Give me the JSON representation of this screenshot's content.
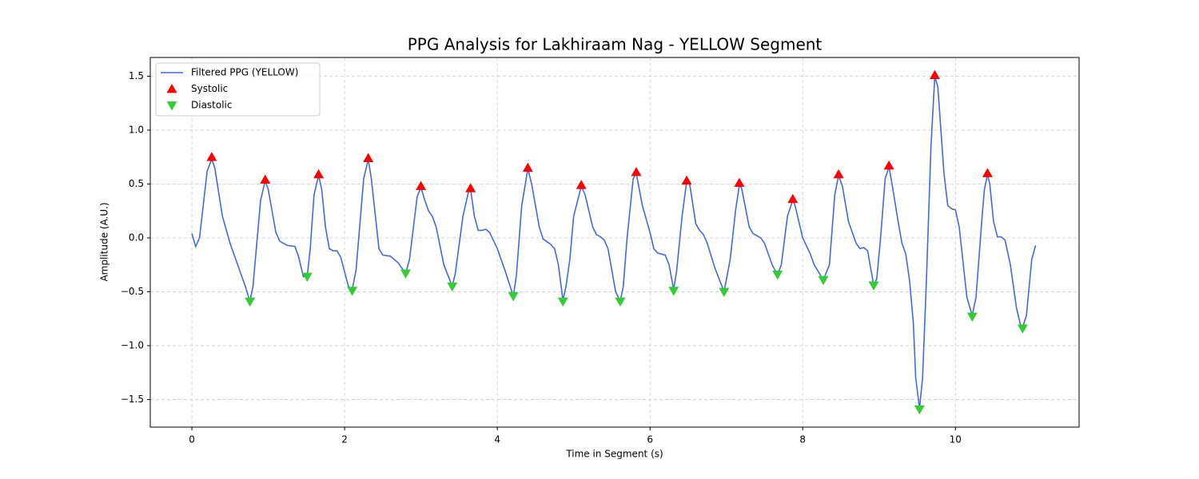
{
  "chart_data": {
    "type": "line",
    "title": "PPG Analysis for Lakhiraam Nag - YELLOW Segment",
    "xlabel": "Time in Segment (s)",
    "ylabel": "Amplitude (A.U.)",
    "xlim": [
      -0.545,
      11.62
    ],
    "ylim": [
      -1.756,
      1.674
    ],
    "xticks": [
      0,
      2,
      4,
      6,
      8,
      10
    ],
    "yticks": [
      {
        "value": -1.5,
        "label": "−1.5"
      },
      {
        "value": -1.0,
        "label": "−1.0"
      },
      {
        "value": -0.5,
        "label": "−0.5"
      },
      {
        "value": 0,
        "label": "0.0"
      },
      {
        "value": 0.5,
        "label": "0.5"
      },
      {
        "value": 1.0,
        "label": "1.0"
      },
      {
        "value": 1.5,
        "label": "1.5"
      }
    ],
    "grid": true,
    "legend": "upper left",
    "series": [
      {
        "name": "Filtered PPG (YELLOW)",
        "color": "#4169e1",
        "marker": "none",
        "x": [
          0,
          0.05,
          0.1,
          0.2,
          0.26,
          0.3,
          0.4,
          0.5,
          0.6,
          0.7,
          0.76,
          0.8,
          0.9,
          0.96,
          1.0,
          1.1,
          1.15,
          1.25,
          1.35,
          1.4,
          1.46,
          1.51,
          1.55,
          1.6,
          1.66,
          1.7,
          1.75,
          1.8,
          1.85,
          1.9,
          1.95,
          2.05,
          2.1,
          2.15,
          2.25,
          2.31,
          2.35,
          2.45,
          2.5,
          2.6,
          2.7,
          2.8,
          2.85,
          2.95,
          3.0,
          3.05,
          3.1,
          3.15,
          3.2,
          3.3,
          3.41,
          3.45,
          3.55,
          3.62,
          3.65,
          3.7,
          3.75,
          3.8,
          3.85,
          3.9,
          4.0,
          4.1,
          4.21,
          4.25,
          4.32,
          4.4,
          4.45,
          4.55,
          4.6,
          4.7,
          4.75,
          4.8,
          4.86,
          4.9,
          4.95,
          5.0,
          5.1,
          5.15,
          5.25,
          5.3,
          5.35,
          5.4,
          5.45,
          5.55,
          5.61,
          5.65,
          5.7,
          5.78,
          5.82,
          5.9,
          6.0,
          6.05,
          6.1,
          6.2,
          6.25,
          6.31,
          6.35,
          6.42,
          6.48,
          6.52,
          6.6,
          6.65,
          6.7,
          6.75,
          6.85,
          6.97,
          7.05,
          7.12,
          7.17,
          7.2,
          7.3,
          7.35,
          7.45,
          7.5,
          7.6,
          7.67,
          7.72,
          7.8,
          7.87,
          7.9,
          8.0,
          8.1,
          8.15,
          8.27,
          8.35,
          8.42,
          8.47,
          8.52,
          8.6,
          8.7,
          8.75,
          8.8,
          8.85,
          8.93,
          8.97,
          9.02,
          9.08,
          9.13,
          9.17,
          9.25,
          9.3,
          9.35,
          9.4,
          9.45,
          9.48,
          9.53,
          9.57,
          9.62,
          9.68,
          9.73,
          9.77,
          9.85,
          9.9,
          9.95,
          10.0,
          10.05,
          10.15,
          10.22,
          10.27,
          10.35,
          10.38,
          10.42,
          10.45,
          10.5,
          10.55,
          10.6,
          10.65,
          10.72,
          10.8,
          10.85,
          10.88,
          10.93,
          11.0,
          11.05
        ],
        "values": [
          0.04,
          -0.08,
          0.0,
          0.62,
          0.73,
          0.65,
          0.2,
          -0.05,
          -0.25,
          -0.45,
          -0.59,
          -0.45,
          0.35,
          0.53,
          0.45,
          0.05,
          -0.03,
          -0.07,
          -0.08,
          -0.18,
          -0.36,
          -0.36,
          -0.1,
          0.4,
          0.58,
          0.45,
          0.1,
          -0.1,
          -0.12,
          -0.12,
          -0.18,
          -0.45,
          -0.48,
          -0.3,
          0.55,
          0.73,
          0.55,
          -0.1,
          -0.16,
          -0.17,
          -0.23,
          -0.33,
          -0.2,
          0.38,
          0.47,
          0.35,
          0.25,
          0.2,
          0.1,
          -0.25,
          -0.45,
          -0.33,
          0.2,
          0.42,
          0.45,
          0.2,
          0.07,
          0.07,
          0.08,
          0.05,
          -0.1,
          -0.3,
          -0.54,
          -0.35,
          0.3,
          0.64,
          0.5,
          0.1,
          -0.01,
          -0.06,
          -0.1,
          -0.25,
          -0.58,
          -0.45,
          -0.2,
          0.2,
          0.48,
          0.4,
          0.1,
          0.03,
          0.01,
          -0.02,
          -0.1,
          -0.5,
          -0.59,
          -0.45,
          0.0,
          0.55,
          0.6,
          0.3,
          0.05,
          -0.1,
          -0.14,
          -0.16,
          -0.25,
          -0.48,
          -0.3,
          0.2,
          0.52,
          0.5,
          0.13,
          0.07,
          0.03,
          -0.05,
          -0.28,
          -0.5,
          -0.2,
          0.25,
          0.49,
          0.46,
          0.1,
          0.04,
          0.0,
          -0.05,
          -0.25,
          -0.34,
          -0.25,
          0.2,
          0.35,
          0.3,
          0.0,
          -0.15,
          -0.25,
          -0.39,
          -0.25,
          0.4,
          0.58,
          0.48,
          0.15,
          -0.05,
          -0.1,
          -0.09,
          -0.12,
          -0.44,
          -0.38,
          0.0,
          0.55,
          0.66,
          0.5,
          0.15,
          -0.05,
          -0.15,
          -0.4,
          -0.8,
          -1.3,
          -1.58,
          -1.3,
          -0.4,
          0.85,
          1.5,
          1.4,
          0.6,
          0.3,
          0.27,
          0.26,
          0.1,
          -0.55,
          -0.72,
          -0.55,
          0.2,
          0.45,
          0.59,
          0.5,
          0.15,
          0.01,
          0.01,
          -0.02,
          -0.25,
          -0.65,
          -0.8,
          -0.83,
          -0.72,
          -0.2,
          -0.07
        ]
      },
      {
        "name": "Systolic",
        "color": "#ff0000",
        "marker": "triangle-up",
        "x": [
          0.26,
          0.96,
          1.66,
          2.31,
          3.0,
          3.65,
          4.4,
          5.1,
          5.82,
          6.48,
          7.17,
          7.87,
          8.47,
          9.13,
          9.73,
          10.42
        ],
        "values": [
          0.75,
          0.54,
          0.59,
          0.74,
          0.48,
          0.46,
          0.65,
          0.49,
          0.61,
          0.53,
          0.51,
          0.36,
          0.59,
          0.67,
          1.51,
          0.6
        ]
      },
      {
        "name": "Diastolic",
        "color": "#32cd32",
        "marker": "triangle-down",
        "x": [
          0.76,
          1.51,
          2.1,
          2.8,
          3.41,
          4.21,
          4.86,
          5.61,
          6.31,
          6.97,
          7.67,
          8.27,
          8.93,
          9.53,
          10.22,
          10.88
        ],
        "values": [
          -0.59,
          -0.36,
          -0.49,
          -0.33,
          -0.45,
          -0.54,
          -0.59,
          -0.59,
          -0.49,
          -0.5,
          -0.34,
          -0.39,
          -0.44,
          -1.59,
          -0.73,
          -0.84
        ]
      }
    ]
  }
}
